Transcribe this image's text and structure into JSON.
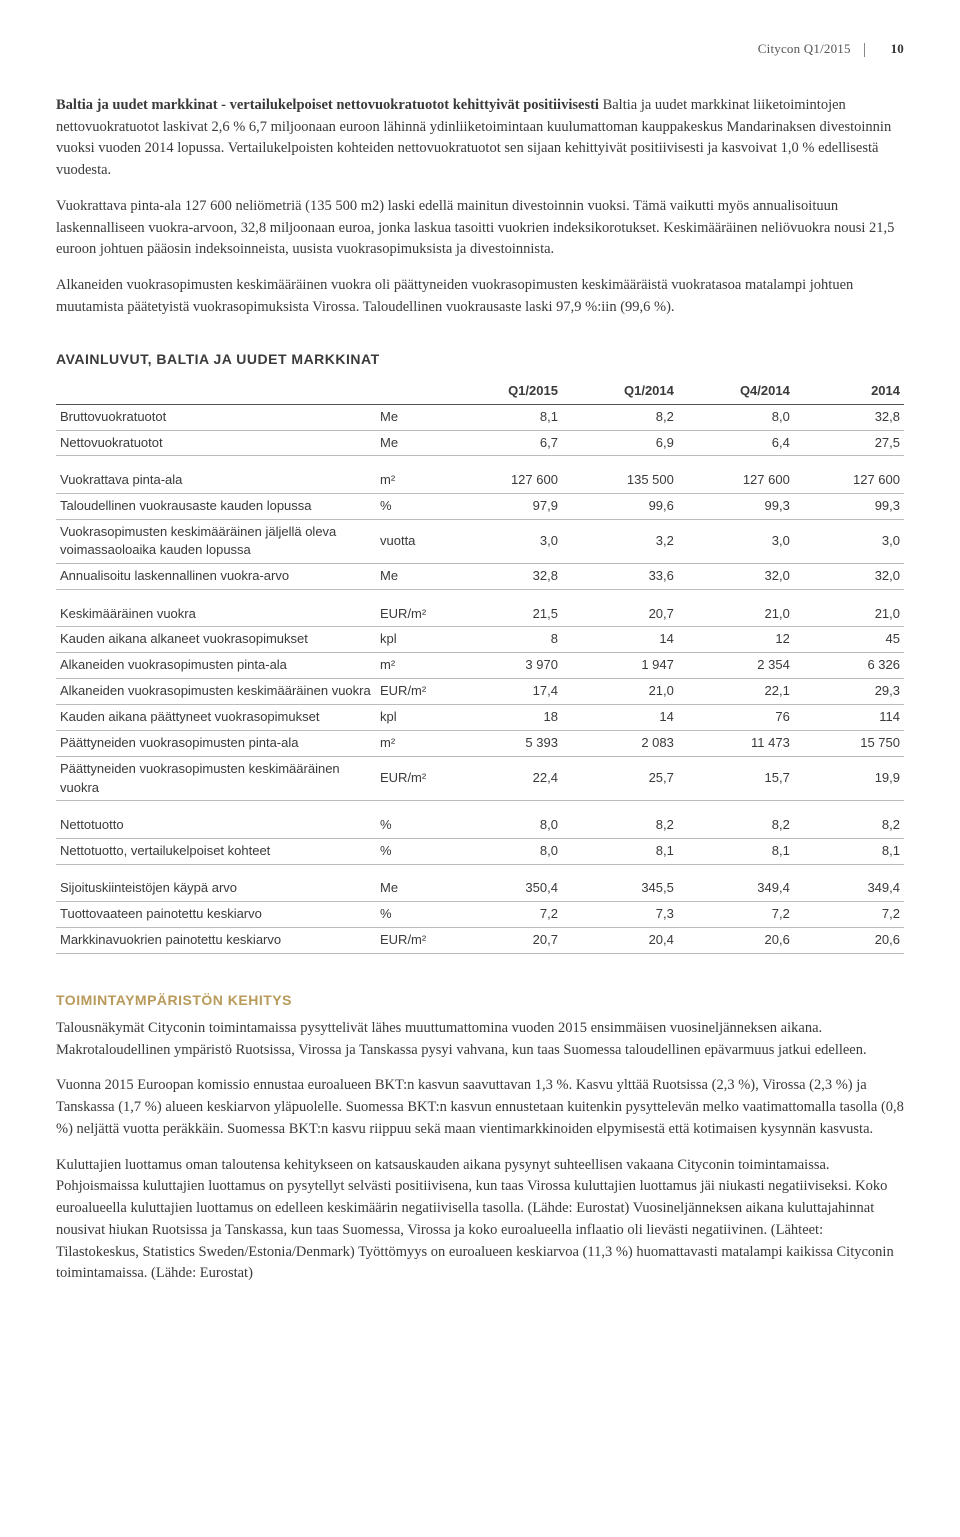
{
  "header": {
    "doc": "Citycon Q1/2015",
    "page": "10"
  },
  "intro": {
    "runin": "Baltia ja uudet markkinat - vertailukelpoiset nettovuokratuotot kehittyivät positiivisesti",
    "p1_rest": " Baltia ja uudet markkinat liiketoimintojen nettovuokratuotot laskivat 2,6 % 6,7 miljoonaan euroon lähinnä ydinliiketoimintaan kuulumattoman kauppakeskus Mandarinaksen divestoinnin vuoksi vuoden 2014 lopussa. Vertailukelpoisten kohteiden nettovuokratuotot sen sijaan kehittyivät positiivisesti ja kasvoivat 1,0 % edellisestä vuodesta.",
    "p2": "Vuokrattava pinta-ala 127 600 neliömetriä (135 500 m2) laski edellä mainitun divestoinnin vuoksi. Tämä vaikutti myös annualisoituun laskennalliseen vuokra-arvoon, 32,8 miljoonaan euroa, jonka laskua tasoitti vuokrien indeksikorotukset. Keskimääräinen neliövuokra nousi 21,5 euroon johtuen pääosin indeksoinneista, uusista vuokrasopimuksista ja divestoinnista.",
    "p3": "Alkaneiden vuokrasopimusten keskimääräinen vuokra oli päättyneiden vuokrasopimusten keskimääräistä vuokratasoa matalampi johtuen muutamista päätetyistä vuokrasopimuksista Virossa. Taloudellinen vuokrausaste laski 97,9 %:iin (99,6 %)."
  },
  "table_title": "AVAINLUVUT, BALTIA JA UUDET MARKKINAT",
  "table": {
    "head": {
      "c1": "Q1/2015",
      "c2": "Q1/2014",
      "c3": "Q4/2014",
      "c4": "2014"
    },
    "rows": [
      {
        "label": "Bruttovuokratuotot",
        "unit": "Me",
        "v": [
          "8,1",
          "8,2",
          "8,0",
          "32,8"
        ]
      },
      {
        "label": "Nettovuokratuotot",
        "unit": "Me",
        "v": [
          "6,7",
          "6,9",
          "6,4",
          "27,5"
        ]
      },
      {
        "gap": true
      },
      {
        "label": "Vuokrattava pinta-ala",
        "unit": "m²",
        "v": [
          "127 600",
          "135 500",
          "127 600",
          "127 600"
        ]
      },
      {
        "label": "Taloudellinen vuokrausaste kauden lopussa",
        "unit": "%",
        "v": [
          "97,9",
          "99,6",
          "99,3",
          "99,3"
        ]
      },
      {
        "label": "Vuokrasopimusten keskimääräinen jäljellä oleva voimassaoloaika kauden lopussa",
        "unit": "vuotta",
        "v": [
          "3,0",
          "3,2",
          "3,0",
          "3,0"
        ]
      },
      {
        "label": "Annualisoitu laskennallinen vuokra-arvo",
        "unit": "Me",
        "v": [
          "32,8",
          "33,6",
          "32,0",
          "32,0"
        ]
      },
      {
        "gap": true
      },
      {
        "label": "Keskimääräinen vuokra",
        "unit": "EUR/m²",
        "v": [
          "21,5",
          "20,7",
          "21,0",
          "21,0"
        ]
      },
      {
        "label": "Kauden aikana alkaneet vuokrasopimukset",
        "unit": "kpl",
        "v": [
          "8",
          "14",
          "12",
          "45"
        ]
      },
      {
        "label": "Alkaneiden vuokrasopimusten pinta-ala",
        "unit": "m²",
        "v": [
          "3 970",
          "1 947",
          "2 354",
          "6 326"
        ]
      },
      {
        "label": "Alkaneiden vuokrasopimusten keskimääräinen vuokra",
        "unit": "EUR/m²",
        "v": [
          "17,4",
          "21,0",
          "22,1",
          "29,3"
        ]
      },
      {
        "label": "Kauden aikana päättyneet vuokrasopimukset",
        "unit": "kpl",
        "v": [
          "18",
          "14",
          "76",
          "114"
        ]
      },
      {
        "label": "Päättyneiden vuokrasopimusten pinta-ala",
        "unit": "m²",
        "v": [
          "5 393",
          "2 083",
          "11 473",
          "15 750"
        ]
      },
      {
        "label": "Päättyneiden vuokrasopimusten keskimääräinen vuokra",
        "unit": "EUR/m²",
        "v": [
          "22,4",
          "25,7",
          "15,7",
          "19,9"
        ]
      },
      {
        "gap": true
      },
      {
        "label": "Nettotuotto",
        "unit": "%",
        "v": [
          "8,0",
          "8,2",
          "8,2",
          "8,2"
        ]
      },
      {
        "label": "Nettotuotto, vertailukelpoiset kohteet",
        "unit": "%",
        "v": [
          "8,0",
          "8,1",
          "8,1",
          "8,1"
        ]
      },
      {
        "gap": true
      },
      {
        "label": "Sijoituskiinteistöjen käypä arvo",
        "unit": "Me",
        "v": [
          "350,4",
          "345,5",
          "349,4",
          "349,4"
        ]
      },
      {
        "label": "Tuottovaateen painotettu keskiarvo",
        "unit": "%",
        "v": [
          "7,2",
          "7,3",
          "7,2",
          "7,2"
        ]
      },
      {
        "label": "Markkinavuokrien painotettu keskiarvo",
        "unit": "EUR/m²",
        "v": [
          "20,7",
          "20,4",
          "20,6",
          "20,6"
        ]
      }
    ]
  },
  "sec2_title": "TOIMINTAYMPÄRISTÖN KEHITYS",
  "sec2": {
    "p1": "Talousnäkymät Cityconin toimintamaissa pysyttelivät lähes muuttumattomina vuoden 2015 ensimmäisen vuosineljänneksen aikana. Makrotaloudellinen ympäristö Ruotsissa, Virossa ja Tanskassa pysyi vahvana, kun taas Suomessa taloudellinen epävarmuus jatkui edelleen.",
    "p2": "Vuonna 2015 Euroopan komissio ennustaa euroalueen BKT:n kasvun saavuttavan 1,3 %. Kasvu ylttää Ruotsissa (2,3 %), Virossa (2,3 %) ja Tanskassa (1,7 %) alueen keskiarvon yläpuolelle. Suomessa BKT:n kasvun ennustetaan kuitenkin pysyttelevän melko vaatimattomalla tasolla (0,8 %) neljättä vuotta peräkkäin. Suomessa BKT:n kasvu riippuu sekä maan vientimarkkinoiden elpymisestä että kotimaisen kysynnän kasvusta.",
    "p3": "Kuluttajien luottamus oman taloutensa kehitykseen on katsauskauden aikana pysynyt suhteellisen vakaana Cityconin toimintamaissa. Pohjoismaissa kuluttajien luottamus on pysytellyt selvästi positiivisena, kun taas Virossa kuluttajien luottamus jäi niukasti negatiiviseksi. Koko euroalueella kuluttajien luottamus on edelleen keskimäärin negatiivisella tasolla. (Lähde: Eurostat) Vuosineljänneksen aikana kuluttajahinnat nousivat hiukan Ruotsissa ja Tanskassa, kun taas Suomessa, Virossa ja koko euroalueella inflaatio oli lievästi negatiivinen. (Lähteet: Tilastokeskus, Statistics Sweden/Estonia/Denmark) Työttömyys on euroalueen keskiarvoa (11,3 %) huomattavasti matalampi kaikissa Cityconin toimintamaissa. (Lähde: Eurostat)"
  }
}
